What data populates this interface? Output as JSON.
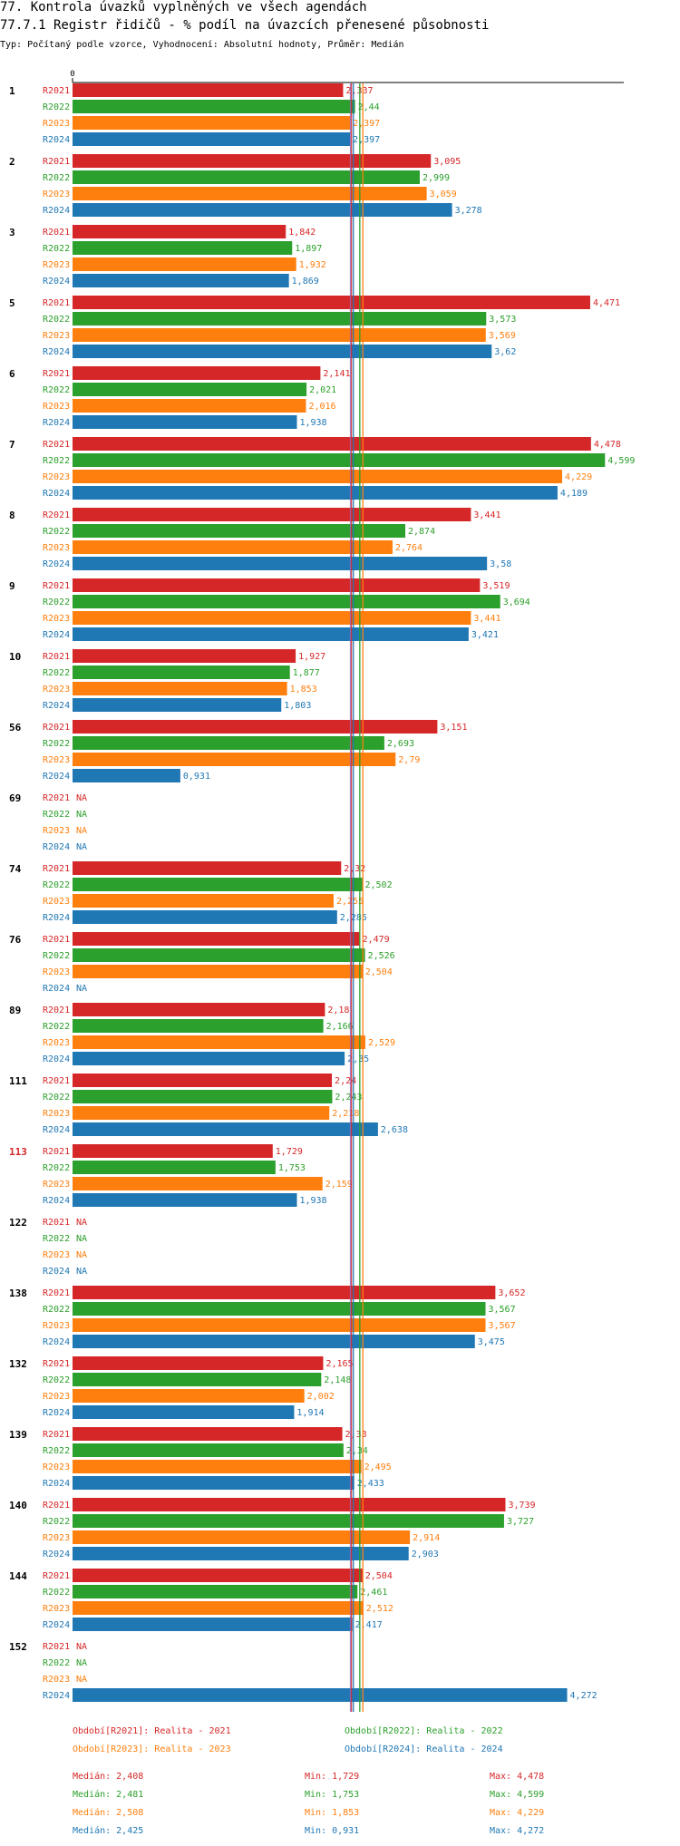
{
  "title": "77. Kontrola úvazků vyplněných ve všech agendách",
  "subtitle": "77.7.1 Registr řidičů - % podíl na úvazcích přenesené působnosti",
  "meta": "Typ: Počítaný podle vzorce, Vyhodnocení: Absolutní hodnoty, Průměr: Medián",
  "chart_data": {
    "type": "bar",
    "orientation": "horizontal",
    "x_axis_zero_label": "0",
    "xlim": [
      0,
      4.8
    ],
    "colors": {
      "R2021": "#d62728",
      "R2022": "#2ca02c",
      "R2023": "#ff7f0e",
      "R2024": "#1f77b4",
      "highlight_category": "#d62728"
    },
    "series_names": [
      "R2021",
      "R2022",
      "R2023",
      "R2024"
    ],
    "missing_label": "NA",
    "categories": [
      {
        "label": "1",
        "highlight": false,
        "values": [
          2.337,
          2.44,
          2.397,
          2.397
        ],
        "labels": [
          "2,337",
          "2,44",
          "2,397",
          "2,397"
        ]
      },
      {
        "label": "2",
        "highlight": false,
        "values": [
          3.095,
          2.999,
          3.059,
          3.278
        ],
        "labels": [
          "3,095",
          "2,999",
          "3,059",
          "3,278"
        ]
      },
      {
        "label": "3",
        "highlight": false,
        "values": [
          1.842,
          1.897,
          1.932,
          1.869
        ],
        "labels": [
          "1,842",
          "1,897",
          "1,932",
          "1,869"
        ]
      },
      {
        "label": "5",
        "highlight": false,
        "values": [
          4.471,
          3.573,
          3.569,
          3.62
        ],
        "labels": [
          "4,471",
          "3,573",
          "3,569",
          "3,62"
        ]
      },
      {
        "label": "6",
        "highlight": false,
        "values": [
          2.141,
          2.021,
          2.016,
          1.938
        ],
        "labels": [
          "2,141",
          "2,021",
          "2,016",
          "1,938"
        ]
      },
      {
        "label": "7",
        "highlight": false,
        "values": [
          4.478,
          4.599,
          4.229,
          4.189
        ],
        "labels": [
          "4,478",
          "4,599",
          "4,229",
          "4,189"
        ]
      },
      {
        "label": "8",
        "highlight": false,
        "values": [
          3.441,
          2.874,
          2.764,
          3.58
        ],
        "labels": [
          "3,441",
          "2,874",
          "2,764",
          "3,58"
        ]
      },
      {
        "label": "9",
        "highlight": false,
        "values": [
          3.519,
          3.694,
          3.441,
          3.421
        ],
        "labels": [
          "3,519",
          "3,694",
          "3,441",
          "3,421"
        ]
      },
      {
        "label": "10",
        "highlight": false,
        "values": [
          1.927,
          1.877,
          1.853,
          1.803
        ],
        "labels": [
          "1,927",
          "1,877",
          "1,853",
          "1,803"
        ]
      },
      {
        "label": "56",
        "highlight": false,
        "values": [
          3.151,
          2.693,
          2.79,
          0.931
        ],
        "labels": [
          "3,151",
          "2,693",
          "2,79",
          "0,931"
        ]
      },
      {
        "label": "69",
        "highlight": false,
        "values": [
          null,
          null,
          null,
          null
        ],
        "labels": [
          "NA",
          "NA",
          "NA",
          "NA"
        ]
      },
      {
        "label": "74",
        "highlight": false,
        "values": [
          2.32,
          2.502,
          2.255,
          2.285
        ],
        "labels": [
          "2,32",
          "2,502",
          "2,255",
          "2,285"
        ]
      },
      {
        "label": "76",
        "highlight": false,
        "values": [
          2.479,
          2.526,
          2.504,
          null
        ],
        "labels": [
          "2,479",
          "2,526",
          "2,504",
          "NA"
        ]
      },
      {
        "label": "89",
        "highlight": false,
        "values": [
          2.18,
          2.166,
          2.529,
          2.35
        ],
        "labels": [
          "2,18",
          "2,166",
          "2,529",
          "2,35"
        ]
      },
      {
        "label": "111",
        "highlight": false,
        "values": [
          2.24,
          2.243,
          2.218,
          2.638
        ],
        "labels": [
          "2,24",
          "2,243",
          "2,218",
          "2,638"
        ]
      },
      {
        "label": "113",
        "highlight": true,
        "values": [
          1.729,
          1.753,
          2.159,
          1.938
        ],
        "labels": [
          "1,729",
          "1,753",
          "2,159",
          "1,938"
        ]
      },
      {
        "label": "122",
        "highlight": false,
        "values": [
          null,
          null,
          null,
          null
        ],
        "labels": [
          "NA",
          "NA",
          "NA",
          "NA"
        ]
      },
      {
        "label": "138",
        "highlight": false,
        "values": [
          3.652,
          3.567,
          3.567,
          3.475
        ],
        "labels": [
          "3,652",
          "3,567",
          "3,567",
          "3,475"
        ]
      },
      {
        "label": "132",
        "highlight": false,
        "values": [
          2.165,
          2.148,
          2.002,
          1.914
        ],
        "labels": [
          "2,165",
          "2,148",
          "2,002",
          "1,914"
        ]
      },
      {
        "label": "139",
        "highlight": false,
        "values": [
          2.33,
          2.34,
          2.495,
          2.433
        ],
        "labels": [
          "2,33",
          "2,34",
          "2,495",
          "2,433"
        ]
      },
      {
        "label": "140",
        "highlight": false,
        "values": [
          3.739,
          3.727,
          2.914,
          2.903
        ],
        "labels": [
          "3,739",
          "3,727",
          "2,914",
          "2,903"
        ]
      },
      {
        "label": "144",
        "highlight": false,
        "values": [
          2.504,
          2.461,
          2.512,
          2.417
        ],
        "labels": [
          "2,504",
          "2,461",
          "2,512",
          "2,417"
        ]
      },
      {
        "label": "152",
        "highlight": false,
        "values": [
          null,
          null,
          null,
          4.272
        ],
        "labels": [
          "NA",
          "NA",
          "NA",
          "4,272"
        ]
      }
    ],
    "reference_lines": [
      {
        "series": "R2021",
        "median": 2.408
      },
      {
        "series": "R2022",
        "median": 2.481
      },
      {
        "series": "R2023",
        "median": 2.508
      },
      {
        "series": "R2024",
        "median": 2.425
      }
    ],
    "legend": [
      {
        "series": "R2021",
        "text": "Období[R2021]: Realita - 2021"
      },
      {
        "series": "R2022",
        "text": "Období[R2022]: Realita - 2022"
      },
      {
        "series": "R2023",
        "text": "Období[R2023]: Realita - 2023"
      },
      {
        "series": "R2024",
        "text": "Období[R2024]: Realita - 2024"
      }
    ],
    "stats": [
      {
        "series": "R2021",
        "median": "Medián: 2,408",
        "min": "Min: 1,729",
        "max": "Max: 4,478"
      },
      {
        "series": "R2022",
        "median": "Medián: 2,481",
        "min": "Min: 1,753",
        "max": "Max: 4,599"
      },
      {
        "series": "R2023",
        "median": "Medián: 2,508",
        "min": "Min: 1,853",
        "max": "Max: 4,229"
      },
      {
        "series": "R2024",
        "median": "Medián: 2,425",
        "min": "Min: 0,931",
        "max": "Max: 4,272"
      }
    ]
  }
}
